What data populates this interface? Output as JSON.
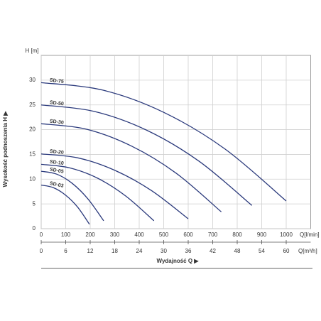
{
  "chart_data": {
    "type": "line",
    "y_label": "Wysokość podnoszenia H ▶",
    "y_unit": "H [m]",
    "x_label": "Wydajność Q ▶",
    "x_unit": "Q[l/min]",
    "x2_unit": "Q[m³/h]",
    "xlim": [
      0,
      1100
    ],
    "xticks": [
      0,
      100,
      200,
      300,
      400,
      500,
      600,
      700,
      800,
      900,
      1000
    ],
    "x2lim": [
      0,
      66
    ],
    "x2ticks": [
      0,
      6,
      12,
      18,
      24,
      30,
      36,
      42,
      48,
      54,
      60
    ],
    "ylim": [
      0,
      35
    ],
    "yticks": [
      0,
      5,
      10,
      15,
      20,
      25,
      30
    ],
    "grid": true,
    "series": [
      {
        "name": "SD-75",
        "color": "#2b3a7c",
        "x": [
          0,
          250,
          500,
          750,
          1000
        ],
        "values": [
          29.5,
          28.0,
          23.5,
          16.1,
          5.6
        ]
      },
      {
        "name": "SD-50",
        "color": "#2b3a7c",
        "x": [
          0,
          215,
          430,
          645,
          860
        ],
        "values": [
          25.0,
          23.7,
          19.9,
          13.6,
          4.7
        ]
      },
      {
        "name": "SD-30",
        "color": "#2b3a7c",
        "x": [
          0,
          184,
          368,
          551,
          735
        ],
        "values": [
          21.2,
          20.1,
          16.7,
          11.2,
          3.4
        ]
      },
      {
        "name": "SD-20",
        "color": "#2b3a7c",
        "x": [
          0,
          150,
          300,
          450,
          600
        ],
        "values": [
          15.1,
          14.3,
          11.8,
          7.7,
          2.0
        ]
      },
      {
        "name": "SD-10",
        "color": "#2b3a7c",
        "x": [
          0,
          115,
          230,
          345,
          460
        ],
        "values": [
          13.0,
          12.3,
          10.2,
          6.6,
          1.6
        ]
      },
      {
        "name": "SD-05",
        "color": "#2b3a7c",
        "x": [
          0,
          64,
          128,
          191,
          255
        ],
        "values": [
          11.6,
          11.0,
          9.1,
          6.0,
          1.6
        ]
      },
      {
        "name": "SD-03",
        "color": "#2b3a7c",
        "x": [
          0,
          49,
          99,
          148,
          197
        ],
        "values": [
          8.8,
          8.3,
          6.8,
          4.4,
          0.9
        ]
      }
    ]
  }
}
